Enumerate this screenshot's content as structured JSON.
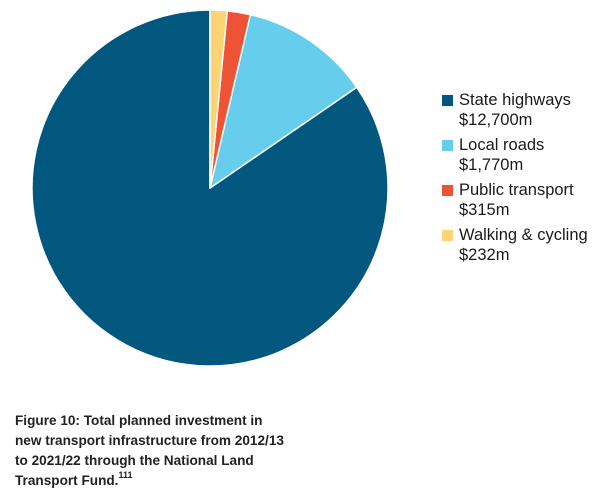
{
  "chart_data": {
    "type": "pie",
    "title": "",
    "categories": [
      "State highways",
      "Local roads",
      "Public transport",
      "Walking & cycling"
    ],
    "values": [
      12700,
      1770,
      315,
      232
    ],
    "value_labels": [
      "$12,700m",
      "$1,770m",
      "$315m",
      "$232m"
    ],
    "unit": "$m",
    "colors": [
      "#02577f",
      "#66cdec",
      "#ef5335",
      "#fdd376"
    ],
    "start_angle_deg": 0,
    "direction": "counterclockwise",
    "legend_position": "right"
  },
  "caption": {
    "text": "Figure 10: Total planned investment in new transport infrastructure from 2012/13 to 2021/22 through the National Land Transport Fund.",
    "footnote": "111"
  }
}
